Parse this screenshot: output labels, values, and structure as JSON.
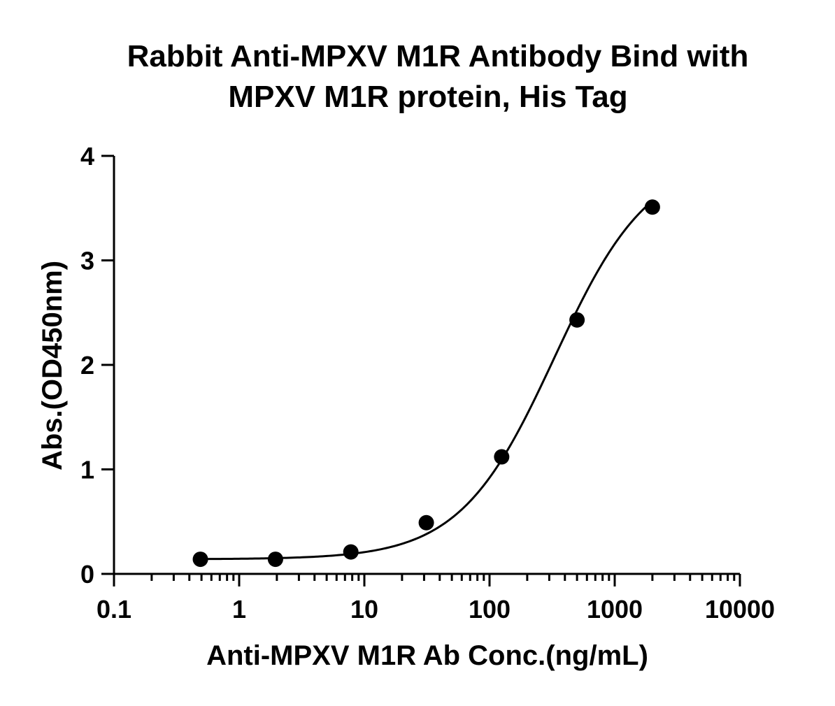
{
  "chart_data": {
    "type": "scatter",
    "title": [
      "Rabbit Anti-MPXV M1R Antibody Bind with",
      "MPXV M1R protein, His Tag"
    ],
    "xlabel": "Anti-MPXV M1R Ab Conc.(ng/mL)",
    "ylabel": "Abs.(OD450nm)",
    "x_scale": "log",
    "xlim": [
      0.1,
      10000
    ],
    "ylim": [
      0,
      4
    ],
    "x_ticks": [
      0.1,
      1,
      10,
      100,
      1000,
      10000
    ],
    "x_tick_labels": [
      "0.1",
      "1",
      "10",
      "100",
      "1000",
      "10000"
    ],
    "y_ticks": [
      0,
      1,
      2,
      3,
      4
    ],
    "y_tick_labels": [
      "0",
      "1",
      "2",
      "3",
      "4"
    ],
    "grid": false,
    "legend": "none",
    "series": [
      {
        "x": [
          0.49,
          1.95,
          7.8,
          31.25,
          125,
          500,
          2000
        ],
        "y": [
          0.14,
          0.14,
          0.21,
          0.49,
          1.12,
          2.43,
          3.51
        ],
        "color": "#000000",
        "marker": "circle",
        "fit": "4PL",
        "fit_params": {
          "bottom": 0.14,
          "top": 4.0,
          "ec50": 330,
          "hill": 1.15
        }
      }
    ]
  }
}
